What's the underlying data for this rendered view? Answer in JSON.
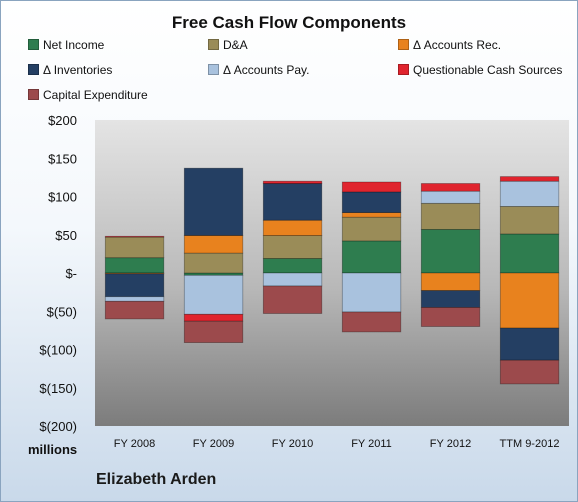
{
  "chart_data": {
    "type": "bar",
    "stacked": true,
    "title": "Free Cash Flow Components",
    "unit_label": "millions",
    "footer": "Elizabeth Arden",
    "categories": [
      "FY 2008",
      "FY 2009",
      "FY 2010",
      "FY 2011",
      "FY 2012",
      "TTM 9-2012"
    ],
    "ylim": [
      -200,
      200
    ],
    "yticks": [
      200,
      150,
      100,
      50,
      0,
      -50,
      -100,
      -150,
      -200
    ],
    "ytick_labels": [
      "$200",
      "$150",
      "$100",
      "$50",
      "$-",
      "$(50)",
      "$(100)",
      "$(150)",
      "$(200)"
    ],
    "grid": false,
    "legend_position": "top",
    "series": [
      {
        "name": "Net Income",
        "color": "#2e7d4f",
        "values": [
          20,
          -3,
          19,
          42,
          57,
          51
        ]
      },
      {
        "name": "D&A",
        "color": "#9a8c58",
        "values": [
          27,
          26,
          30,
          31,
          34,
          36
        ]
      },
      {
        "name": "Δ Accounts Rec.",
        "color": "#e8821e",
        "values": [
          -1,
          23,
          20,
          6,
          -23,
          -72
        ]
      },
      {
        "name": "Δ Inventories",
        "color": "#243f63",
        "values": [
          -30,
          88,
          48,
          27,
          -22,
          -42
        ]
      },
      {
        "name": "Δ Accounts Pay.",
        "color": "#a9c2de",
        "values": [
          -6,
          -51,
          -17,
          -51,
          16,
          33
        ]
      },
      {
        "name": "Questionable Cash Sources",
        "color": "#e0242e",
        "values": [
          1,
          -9,
          3,
          13,
          10,
          6
        ]
      },
      {
        "name": "Capital Expenditure",
        "color": "#9c4a4c",
        "values": [
          -23,
          -28,
          -36,
          -26,
          -25,
          -31
        ]
      }
    ]
  }
}
